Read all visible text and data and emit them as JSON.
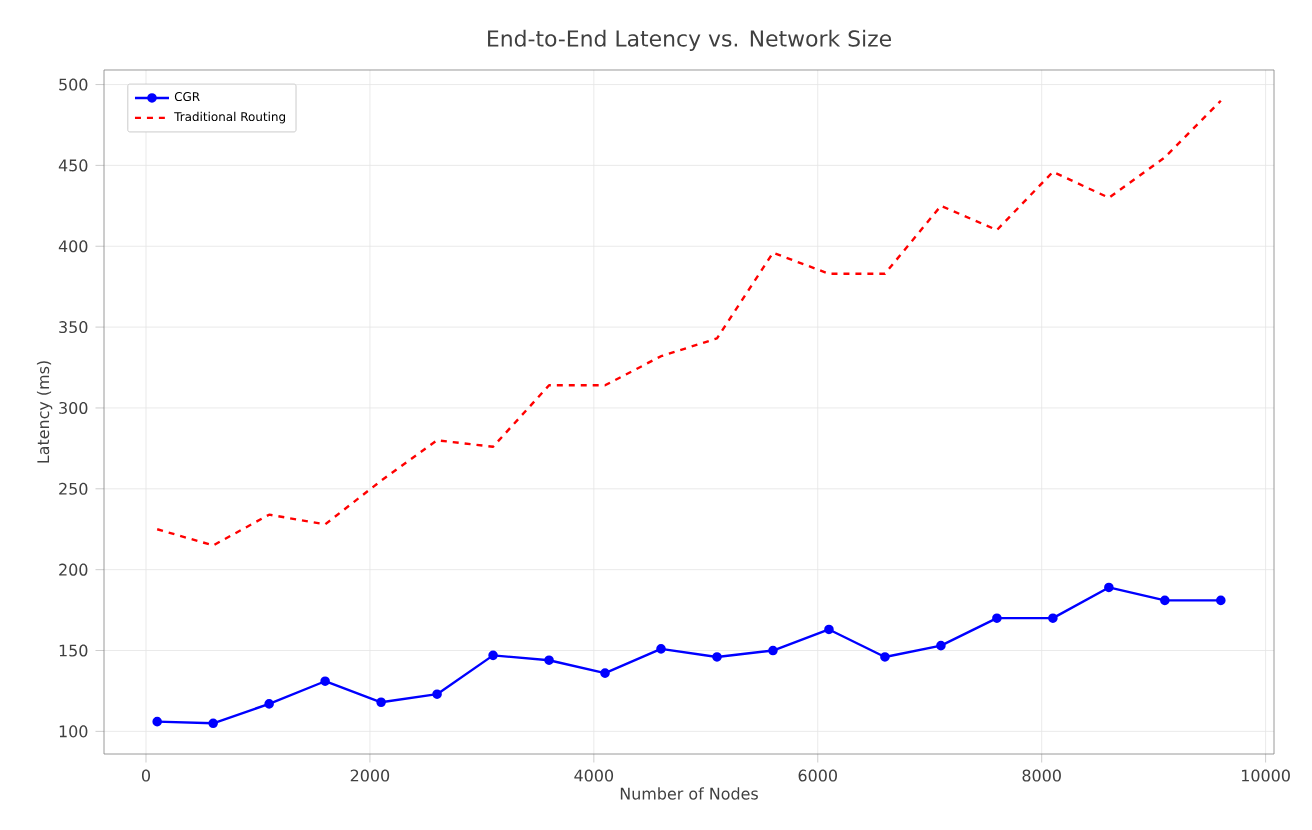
{
  "chart_data": {
    "type": "line",
    "title": "End-to-End Latency vs. Network Size",
    "xlabel": "Number of Nodes",
    "ylabel": "Latency (ms)",
    "x": [
      100,
      600,
      1100,
      1600,
      2100,
      2600,
      3100,
      3600,
      4100,
      4600,
      5100,
      5600,
      6100,
      6600,
      7100,
      7600,
      8100,
      8600,
      9100,
      9600
    ],
    "series": [
      {
        "name": "CGR",
        "color": "#0000ff",
        "marker": "circle",
        "line_style": "solid",
        "values": [
          106,
          105,
          117,
          131,
          118,
          123,
          147,
          144,
          136,
          151,
          146,
          150,
          163,
          146,
          153,
          170,
          170,
          189,
          181,
          181
        ]
      },
      {
        "name": "Traditional Routing",
        "color": "#ff0000",
        "marker": "none",
        "line_style": "dashed",
        "values": [
          225,
          215,
          234,
          228,
          255,
          280,
          276,
          314,
          314,
          332,
          343,
          396,
          383,
          383,
          425,
          410,
          446,
          430,
          455,
          490
        ]
      }
    ],
    "xlim": [
      -375,
      10075
    ],
    "ylim": [
      86,
      509
    ],
    "xticks": [
      0,
      2000,
      4000,
      6000,
      8000,
      10000
    ],
    "yticks": [
      100,
      150,
      200,
      250,
      300,
      350,
      400,
      450,
      500
    ],
    "grid": true,
    "legend": "top left"
  }
}
